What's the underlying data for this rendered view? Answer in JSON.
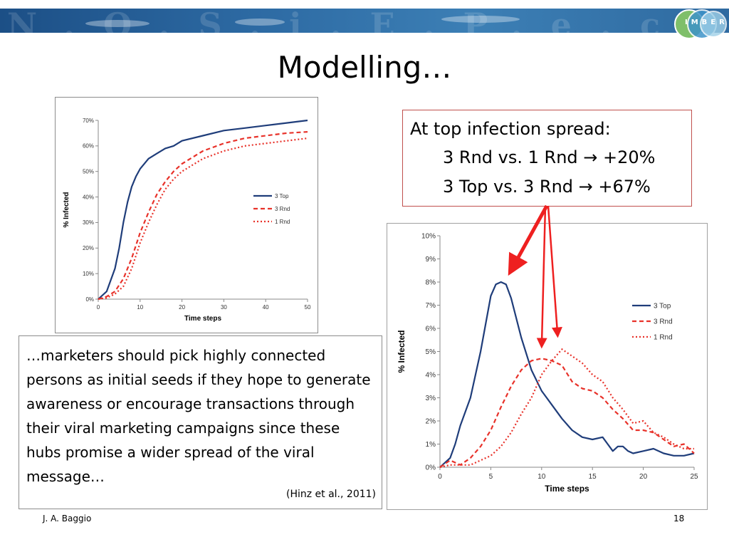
{
  "slide": {
    "title": "Modelling…",
    "logo_text": "IMBER",
    "banner_text": "N.O.S.i.E.P.e.c",
    "footer_author": "J. A. Baggio",
    "footer_page": "18"
  },
  "infobox": {
    "line1": "At top infection spread:",
    "line2": "3 Rnd vs. 1 Rnd → +20%",
    "line3": "3 Top vs. 3 Rnd → +67%",
    "accent": "#c0504d"
  },
  "quote": {
    "text": "…marketers should pick highly connected persons as initial seeds if they hope to generate awareness or encourage transactions through their viral marketing campaigns since these hubs promise a wider spread of the viral message…",
    "citation": "(Hinz et al., 2011)"
  },
  "colors": {
    "top": "#1f3d7a",
    "rnd3": "#e8322a",
    "rnd1": "#e8322a",
    "arrow": "#ee2020"
  },
  "chart_data": [
    {
      "type": "line",
      "title": "",
      "xlabel": "Time steps",
      "ylabel": "% Infected",
      "xlim": [
        0,
        50
      ],
      "ylim": [
        0,
        0.7
      ],
      "xticks": [
        "0",
        "10",
        "20",
        "30",
        "40",
        "50"
      ],
      "yticks": [
        "0%",
        "10%",
        "20%",
        "30%",
        "40%",
        "50%",
        "60%",
        "70%"
      ],
      "grid": false,
      "legend": "right",
      "series": [
        {
          "name": "3 Top",
          "style": "solid",
          "x": [
            0,
            2,
            4,
            5,
            6,
            7,
            8,
            9,
            10,
            12,
            14,
            16,
            18,
            20,
            25,
            30,
            35,
            40,
            45,
            50
          ],
          "y": [
            0,
            0.03,
            0.12,
            0.2,
            0.3,
            0.38,
            0.44,
            0.48,
            0.51,
            0.55,
            0.57,
            0.59,
            0.6,
            0.62,
            0.64,
            0.66,
            0.67,
            0.68,
            0.69,
            0.7
          ]
        },
        {
          "name": "3 Rnd",
          "style": "dashed",
          "x": [
            0,
            2,
            4,
            6,
            8,
            10,
            12,
            14,
            16,
            18,
            20,
            25,
            30,
            35,
            40,
            45,
            50
          ],
          "y": [
            0,
            0.01,
            0.03,
            0.08,
            0.16,
            0.26,
            0.34,
            0.41,
            0.46,
            0.5,
            0.53,
            0.58,
            0.61,
            0.63,
            0.64,
            0.65,
            0.655
          ]
        },
        {
          "name": "1 Rnd",
          "style": "dotted",
          "x": [
            0,
            2,
            4,
            6,
            8,
            10,
            12,
            14,
            16,
            18,
            20,
            25,
            30,
            35,
            40,
            45,
            50
          ],
          "y": [
            0,
            0.005,
            0.02,
            0.05,
            0.12,
            0.22,
            0.3,
            0.37,
            0.43,
            0.47,
            0.5,
            0.55,
            0.58,
            0.6,
            0.61,
            0.62,
            0.63
          ]
        }
      ]
    },
    {
      "type": "line",
      "title": "",
      "xlabel": "Time steps",
      "ylabel": "% Infected",
      "xlim": [
        0,
        25
      ],
      "ylim": [
        0,
        0.1
      ],
      "xticks": [
        "0",
        "5",
        "10",
        "15",
        "20",
        "25"
      ],
      "yticks": [
        "0%",
        "1%",
        "2%",
        "3%",
        "4%",
        "5%",
        "6%",
        "7%",
        "8%",
        "9%",
        "10%"
      ],
      "grid": false,
      "legend": "right",
      "series": [
        {
          "name": "3 Top",
          "style": "solid",
          "x": [
            0,
            0.5,
            1,
            1.5,
            2,
            3,
            4,
            5,
            5.5,
            6,
            6.5,
            7,
            8,
            9,
            10,
            11,
            12,
            13,
            14,
            15,
            16,
            16.5,
            17,
            17.5,
            18,
            18.5,
            19,
            20,
            21,
            22,
            23,
            24,
            25
          ],
          "y": [
            0,
            0.002,
            0.004,
            0.01,
            0.018,
            0.03,
            0.05,
            0.074,
            0.079,
            0.08,
            0.079,
            0.073,
            0.056,
            0.042,
            0.033,
            0.027,
            0.021,
            0.016,
            0.013,
            0.012,
            0.013,
            0.01,
            0.007,
            0.009,
            0.009,
            0.007,
            0.006,
            0.007,
            0.008,
            0.006,
            0.005,
            0.005,
            0.006
          ]
        },
        {
          "name": "3 Rnd",
          "style": "dashed",
          "x": [
            0,
            1,
            2,
            3,
            4,
            5,
            6,
            7,
            8,
            9,
            10,
            11,
            12,
            13,
            14,
            15,
            16,
            17,
            18,
            19,
            20,
            21,
            22,
            23,
            24,
            25
          ],
          "y": [
            0,
            0.003,
            0.001,
            0.004,
            0.009,
            0.016,
            0.026,
            0.035,
            0.042,
            0.046,
            0.047,
            0.046,
            0.044,
            0.037,
            0.034,
            0.033,
            0.03,
            0.025,
            0.021,
            0.016,
            0.016,
            0.015,
            0.012,
            0.009,
            0.01,
            0.006
          ]
        },
        {
          "name": "1 Rnd",
          "style": "dotted",
          "x": [
            0,
            1,
            2,
            3,
            4,
            5,
            6,
            7,
            8,
            9,
            10,
            11,
            12,
            13,
            14,
            15,
            16,
            17,
            18,
            19,
            20,
            21,
            22,
            23,
            24,
            25
          ],
          "y": [
            0,
            0.001,
            0.001,
            0.001,
            0.003,
            0.005,
            0.009,
            0.015,
            0.023,
            0.03,
            0.04,
            0.046,
            0.051,
            0.048,
            0.045,
            0.04,
            0.037,
            0.03,
            0.025,
            0.019,
            0.02,
            0.015,
            0.013,
            0.01,
            0.008,
            0.008
          ]
        }
      ]
    }
  ]
}
